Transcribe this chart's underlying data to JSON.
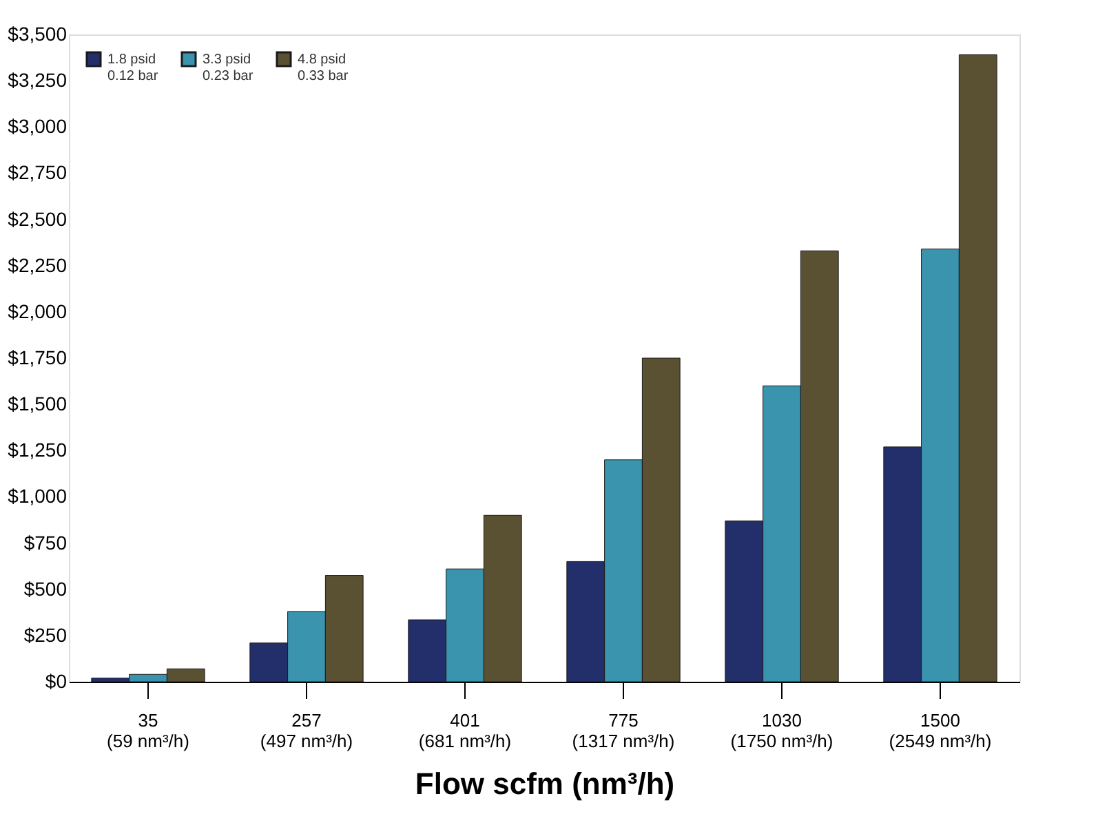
{
  "chart_data": {
    "type": "bar",
    "xlabel": "Flow scfm (nm³/h)",
    "categories": [
      "35\n(59 nm³/h)",
      "257\n(497 nm³/h)",
      "401\n(681 nm³/h)",
      "775\n(1317 nm³/h)",
      "1030\n(1750 nm³/h)",
      "1500\n(2549 nm³/h)"
    ],
    "series": [
      {
        "name": "1.8 psid\n0.12 bar",
        "color": "#232f6b",
        "values": [
          20,
          210,
          335,
          650,
          870,
          1270
        ]
      },
      {
        "name": "3.3 psid\n0.23 bar",
        "color": "#3a94ad",
        "values": [
          40,
          380,
          610,
          1200,
          1600,
          2340
        ]
      },
      {
        "name": "4.8 psid\n0.33 bar",
        "color": "#5a5133",
        "values": [
          70,
          575,
          900,
          1750,
          2330,
          3390
        ]
      }
    ],
    "ylim": [
      0,
      3500
    ],
    "yticks": [
      {
        "value": 0,
        "label": "$0"
      },
      {
        "value": 250,
        "label": "$250"
      },
      {
        "value": 500,
        "label": "$500"
      },
      {
        "value": 750,
        "label": "$750"
      },
      {
        "value": 1000,
        "label": "$1,000"
      },
      {
        "value": 1250,
        "label": "$1,250"
      },
      {
        "value": 1500,
        "label": "$1,500"
      },
      {
        "value": 1750,
        "label": "$1,750"
      },
      {
        "value": 2000,
        "label": "$2,000"
      },
      {
        "value": 2250,
        "label": "$2,250"
      },
      {
        "value": 2500,
        "label": "$2,500"
      },
      {
        "value": 2750,
        "label": "$2,750"
      },
      {
        "value": 3000,
        "label": "$3,000"
      },
      {
        "value": 3250,
        "label": "$3,250"
      },
      {
        "value": 3500,
        "label": "$3,500"
      }
    ],
    "grid": false,
    "legend": "top left"
  }
}
